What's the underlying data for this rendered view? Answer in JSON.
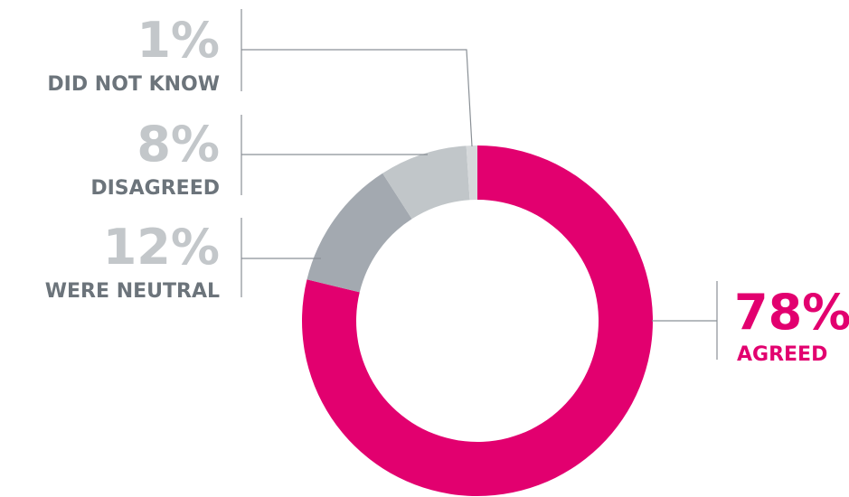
{
  "chart_data": {
    "type": "pie",
    "donut": true,
    "categories": [
      "AGREED",
      "WERE NEUTRAL",
      "DISAGREED",
      "DID NOT KNOW"
    ],
    "values": [
      78,
      12,
      8,
      1
    ],
    "value_labels": [
      "78%",
      "12%",
      "8%",
      "1%"
    ],
    "colors": [
      "#e2006f",
      "#a3a9b0",
      "#c1c6c9",
      "#d6d9db"
    ],
    "label_colors": {
      "agreed_pct": "#e2006f",
      "agreed_text": "#e2006f",
      "other_pct": "#c3c7ca",
      "other_text": "#6c747b"
    },
    "leader_line_color": "#8a9096",
    "title": "",
    "legend": "none"
  }
}
